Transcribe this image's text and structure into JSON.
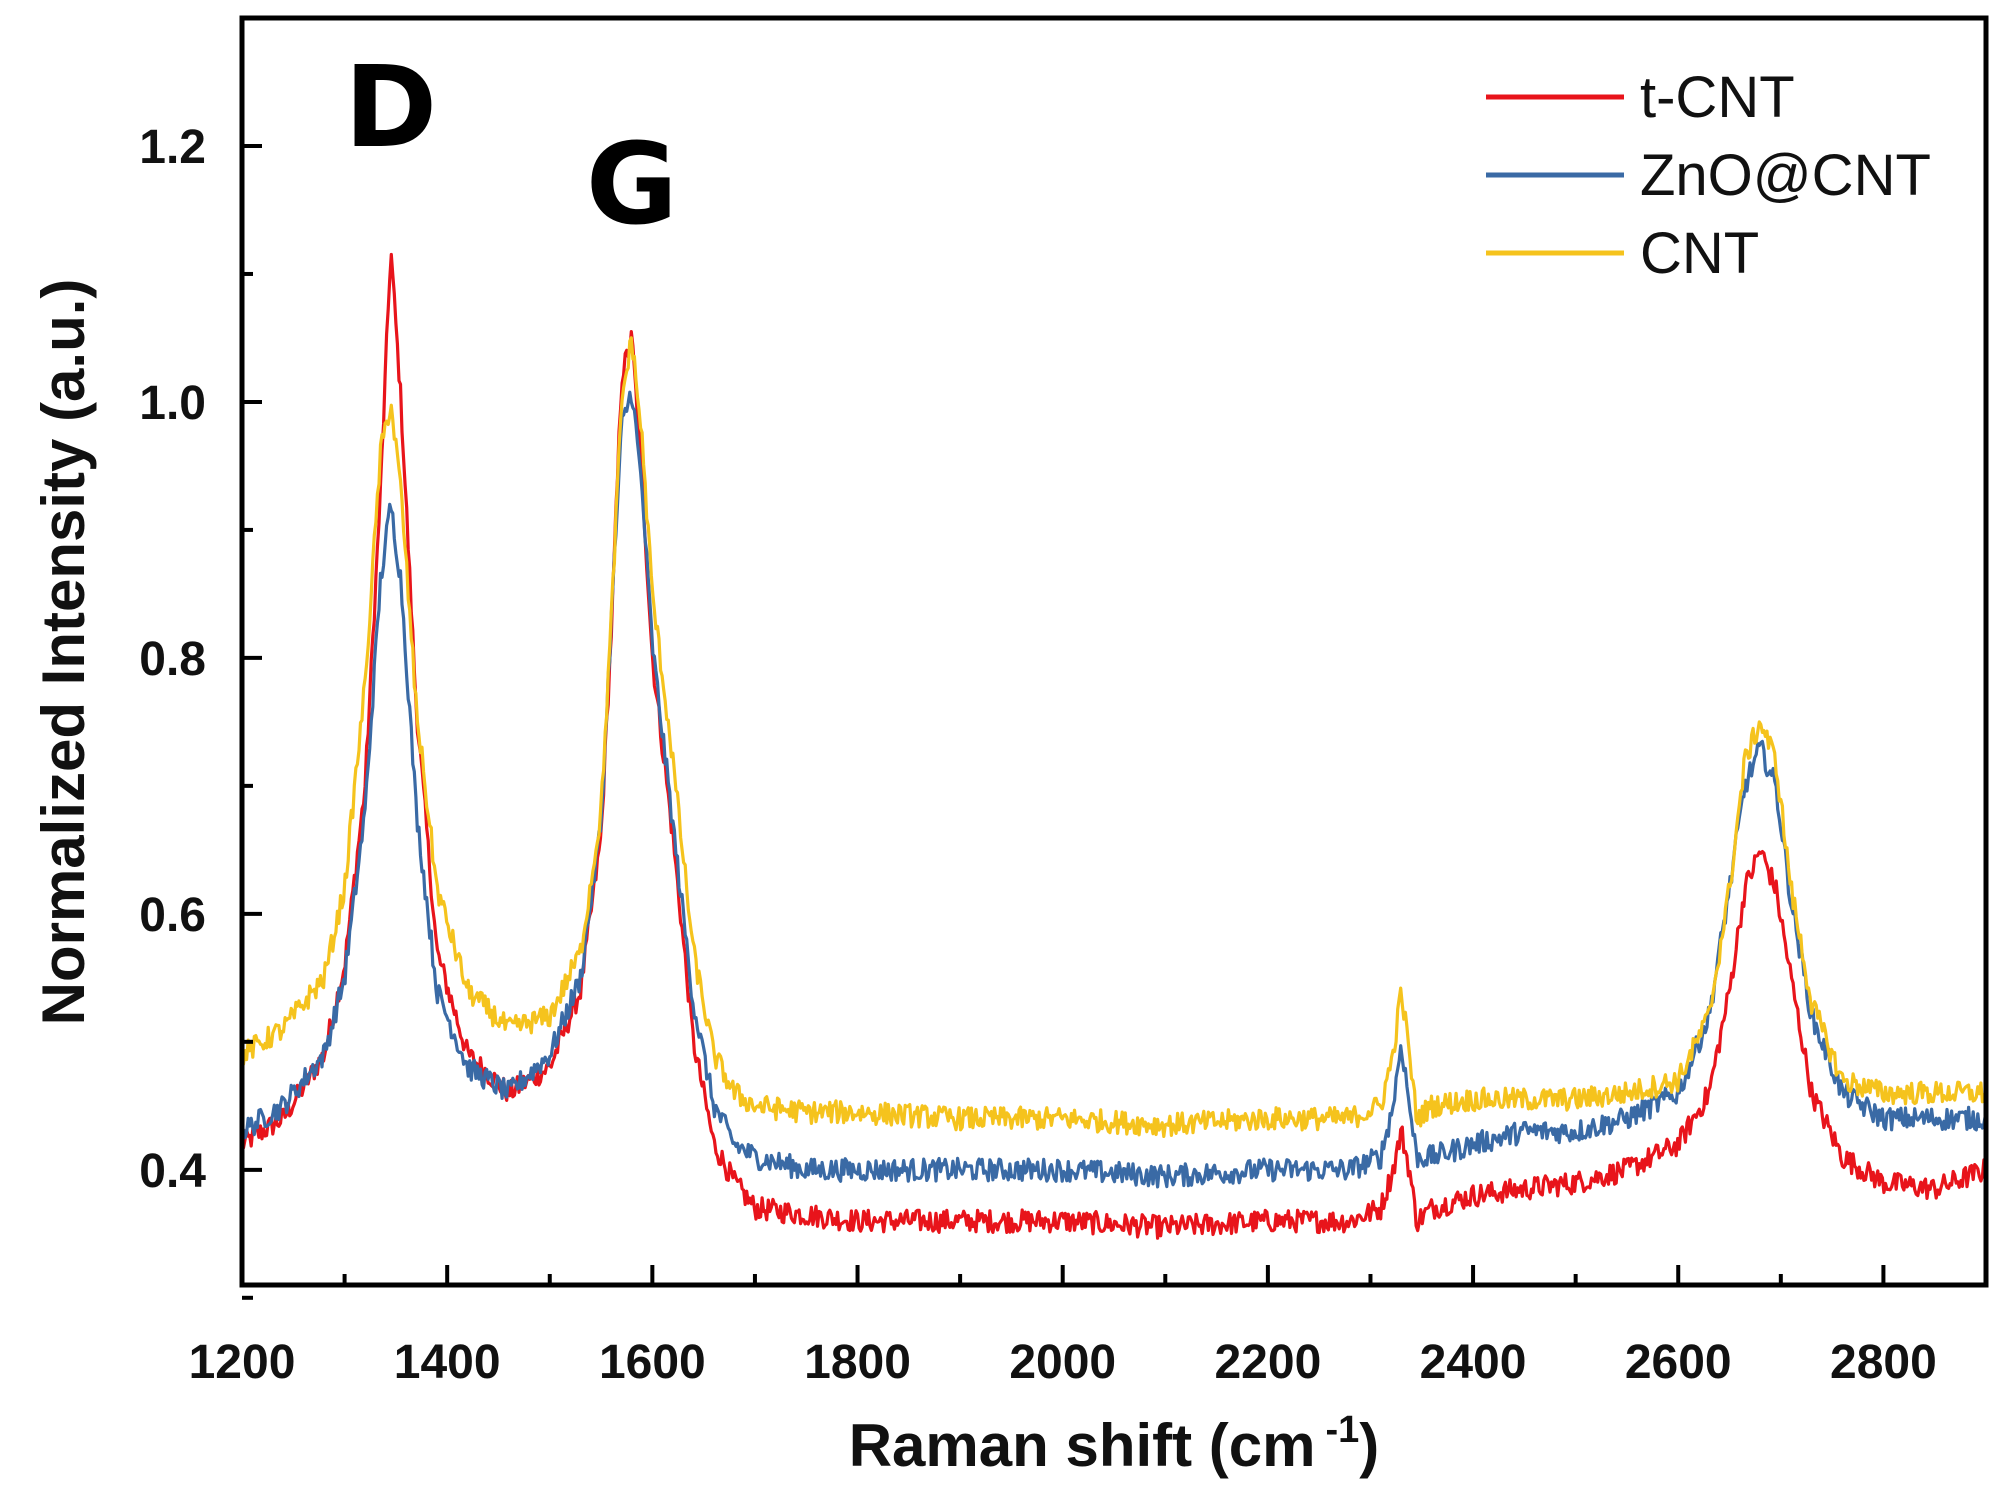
{
  "chart_data": {
    "type": "line",
    "xlabel": "Raman shift (cm",
    "xlabel_sup": "-1",
    "xlabel_end": ")",
    "ylabel": "Normalized Intensity (a.u.)",
    "xlim": [
      1200,
      2900
    ],
    "ylim": [
      0.31,
      1.3
    ],
    "xticks": [
      1200,
      1400,
      1600,
      1800,
      2000,
      2200,
      2400,
      2600,
      2800
    ],
    "yticks": [
      0.4,
      0.6,
      0.8,
      1.0,
      1.2
    ],
    "xtick_labels": [
      "1200",
      "1400",
      "1600",
      "1800",
      "2000",
      "2200",
      "2400",
      "2600",
      "2800"
    ],
    "ytick_labels": [
      "0.4",
      "0.6",
      "0.8",
      "1.0",
      "1.2"
    ],
    "grid": false,
    "legend_position": "top-right",
    "annotations": [
      {
        "text": "D",
        "x": 1345,
        "y": 1.2
      },
      {
        "text": "G",
        "x": 1580,
        "y": 1.14
      }
    ],
    "series": [
      {
        "name": "t-CNT",
        "color": "#e8141b",
        "x": [
          1200,
          1240,
          1280,
          1300,
          1320,
          1335,
          1345,
          1355,
          1370,
          1390,
          1420,
          1460,
          1500,
          1530,
          1550,
          1560,
          1570,
          1580,
          1590,
          1600,
          1620,
          1640,
          1660,
          1680,
          1700,
          1750,
          1800,
          1900,
          2000,
          2100,
          2200,
          2280,
          2310,
          2322,
          2330,
          2338,
          2345,
          2360,
          2400,
          2450,
          2500,
          2550,
          2600,
          2630,
          2650,
          2665,
          2680,
          2695,
          2710,
          2730,
          2760,
          2800,
          2850,
          2900
        ],
        "y": [
          0.42,
          0.44,
          0.49,
          0.56,
          0.7,
          0.93,
          1.12,
          1.0,
          0.76,
          0.57,
          0.49,
          0.46,
          0.48,
          0.54,
          0.66,
          0.82,
          1.02,
          1.05,
          0.94,
          0.8,
          0.66,
          0.5,
          0.42,
          0.39,
          0.37,
          0.365,
          0.36,
          0.36,
          0.36,
          0.355,
          0.36,
          0.36,
          0.37,
          0.4,
          0.43,
          0.4,
          0.36,
          0.37,
          0.38,
          0.385,
          0.39,
          0.4,
          0.42,
          0.46,
          0.54,
          0.62,
          0.65,
          0.62,
          0.55,
          0.46,
          0.41,
          0.39,
          0.385,
          0.4
        ]
      },
      {
        "name": "ZnO@CNT",
        "color": "#3a6aa5",
        "x": [
          1200,
          1240,
          1280,
          1300,
          1320,
          1335,
          1345,
          1355,
          1370,
          1390,
          1420,
          1460,
          1500,
          1530,
          1550,
          1560,
          1570,
          1580,
          1590,
          1600,
          1620,
          1640,
          1660,
          1680,
          1700,
          1750,
          1800,
          1900,
          2000,
          2100,
          2200,
          2280,
          2310,
          2322,
          2330,
          2338,
          2345,
          2360,
          2400,
          2450,
          2500,
          2550,
          2600,
          2630,
          2650,
          2665,
          2680,
          2695,
          2710,
          2730,
          2760,
          2800,
          2850,
          2900
        ],
        "y": [
          0.43,
          0.45,
          0.49,
          0.55,
          0.68,
          0.86,
          0.92,
          0.86,
          0.68,
          0.54,
          0.48,
          0.46,
          0.49,
          0.55,
          0.67,
          0.83,
          0.98,
          1.01,
          0.93,
          0.81,
          0.67,
          0.53,
          0.45,
          0.42,
          0.41,
          0.4,
          0.4,
          0.4,
          0.4,
          0.395,
          0.4,
          0.4,
          0.41,
          0.45,
          0.5,
          0.45,
          0.41,
          0.41,
          0.42,
          0.43,
          0.43,
          0.44,
          0.46,
          0.52,
          0.62,
          0.7,
          0.73,
          0.7,
          0.61,
          0.52,
          0.46,
          0.44,
          0.44,
          0.44
        ]
      },
      {
        "name": "CNT",
        "color": "#f5c31d",
        "x": [
          1200,
          1240,
          1280,
          1300,
          1320,
          1335,
          1345,
          1355,
          1370,
          1390,
          1420,
          1460,
          1500,
          1530,
          1550,
          1560,
          1570,
          1580,
          1590,
          1600,
          1620,
          1640,
          1660,
          1680,
          1700,
          1750,
          1800,
          1900,
          2000,
          2100,
          2200,
          2280,
          2310,
          2322,
          2330,
          2338,
          2345,
          2360,
          2400,
          2450,
          2500,
          2550,
          2600,
          2630,
          2650,
          2665,
          2680,
          2695,
          2710,
          2730,
          2760,
          2800,
          2850,
          2900
        ],
        "y": [
          0.49,
          0.51,
          0.55,
          0.62,
          0.78,
          0.96,
          1.0,
          0.93,
          0.76,
          0.62,
          0.54,
          0.51,
          0.52,
          0.57,
          0.68,
          0.83,
          1.0,
          1.05,
          0.97,
          0.85,
          0.72,
          0.57,
          0.49,
          0.46,
          0.45,
          0.445,
          0.445,
          0.44,
          0.44,
          0.435,
          0.44,
          0.44,
          0.45,
          0.49,
          0.54,
          0.49,
          0.44,
          0.45,
          0.455,
          0.455,
          0.455,
          0.46,
          0.47,
          0.52,
          0.62,
          0.72,
          0.75,
          0.72,
          0.62,
          0.53,
          0.47,
          0.46,
          0.46,
          0.46
        ]
      }
    ]
  }
}
